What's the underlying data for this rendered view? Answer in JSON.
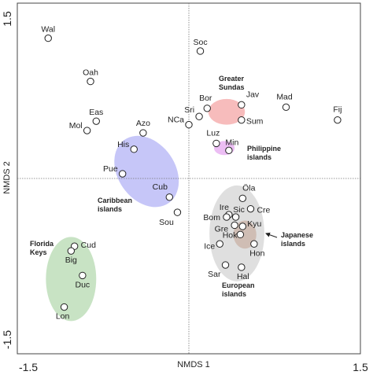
{
  "chart_data": {
    "type": "scatter",
    "xlabel": "NMDS 1",
    "ylabel": "NMDS 2",
    "xlim": [
      -1.5,
      1.5
    ],
    "ylim": [
      -1.5,
      1.5
    ],
    "x_tick_labels": [
      "-1.5",
      "1.5"
    ],
    "y_tick_labels": [
      "-1.5",
      "1.5"
    ],
    "reference_lines": [
      {
        "axis": "x",
        "value": 0
      },
      {
        "axis": "y",
        "value": 0
      }
    ],
    "points": [
      {
        "label": "Wal",
        "x": -1.23,
        "y": 1.2
      },
      {
        "label": "Soc",
        "x": 0.1,
        "y": 1.09
      },
      {
        "label": "Oah",
        "x": -0.86,
        "y": 0.83
      },
      {
        "label": "Jav",
        "x": 0.46,
        "y": 0.63
      },
      {
        "label": "Mad",
        "x": 0.85,
        "y": 0.61
      },
      {
        "label": "Bor",
        "x": 0.16,
        "y": 0.6
      },
      {
        "label": "Sri",
        "x": 0.09,
        "y": 0.53
      },
      {
        "label": "Sum",
        "x": 0.46,
        "y": 0.5
      },
      {
        "label": "Fij",
        "x": 1.3,
        "y": 0.5
      },
      {
        "label": "Eas",
        "x": -0.81,
        "y": 0.49
      },
      {
        "label": "NCa",
        "x": 0.0,
        "y": 0.46
      },
      {
        "label": "Mol",
        "x": -0.89,
        "y": 0.41
      },
      {
        "label": "Azo",
        "x": -0.4,
        "y": 0.39
      },
      {
        "label": "Luz",
        "x": 0.24,
        "y": 0.3
      },
      {
        "label": "Min",
        "x": 0.35,
        "y": 0.24
      },
      {
        "label": "His",
        "x": -0.48,
        "y": 0.25
      },
      {
        "label": "Pue",
        "x": -0.58,
        "y": 0.04
      },
      {
        "label": "Cub",
        "x": -0.17,
        "y": -0.16
      },
      {
        "label": "Sou",
        "x": -0.1,
        "y": -0.29
      },
      {
        "label": "Öla",
        "x": 0.47,
        "y": -0.17
      },
      {
        "label": "Cre",
        "x": 0.54,
        "y": -0.26
      },
      {
        "label": "Ire",
        "x": 0.35,
        "y": -0.31
      },
      {
        "label": "Sic",
        "x": 0.41,
        "y": -0.33
      },
      {
        "label": "Bom",
        "x": 0.33,
        "y": -0.33
      },
      {
        "label": "Gre",
        "x": 0.4,
        "y": -0.4
      },
      {
        "label": "Kyu",
        "x": 0.47,
        "y": -0.41
      },
      {
        "label": "Hok",
        "x": 0.45,
        "y": -0.48
      },
      {
        "label": "Ice",
        "x": 0.27,
        "y": -0.56
      },
      {
        "label": "Hon",
        "x": 0.57,
        "y": -0.56
      },
      {
        "label": "Sar",
        "x": 0.32,
        "y": -0.74
      },
      {
        "label": "Hal",
        "x": 0.46,
        "y": -0.76
      },
      {
        "label": "Cud",
        "x": -1.0,
        "y": -0.58
      },
      {
        "label": "Big",
        "x": -1.03,
        "y": -0.62
      },
      {
        "label": "Duc",
        "x": -0.93,
        "y": -0.83
      },
      {
        "label": "Lon",
        "x": -1.09,
        "y": -1.1
      }
    ],
    "regions": [
      {
        "name": "Greater Sundas",
        "label_lines": [
          "Greater",
          "Sundas"
        ],
        "color": "#f4a6a6",
        "cx": 0.33,
        "cy": 0.57,
        "rx": 0.16,
        "ry": 0.11
      },
      {
        "name": "Philippine islands",
        "label_lines": [
          "Philippine",
          "islands"
        ],
        "color": "#e6a8f0",
        "cx": 0.31,
        "cy": 0.26,
        "rx": 0.09,
        "ry": 0.06
      },
      {
        "name": "Caribbean islands",
        "label_lines": [
          "Caribbean",
          "islands"
        ],
        "color": "#b3b3f5",
        "cx": -0.37,
        "cy": 0.06,
        "rx": 0.25,
        "ry": 0.33
      },
      {
        "name": "European islands",
        "label_lines": [
          "European",
          "islands"
        ],
        "color": "#d4d4d4",
        "cx": 0.42,
        "cy": -0.47,
        "rx": 0.24,
        "ry": 0.41
      },
      {
        "name": "Japanese islands",
        "label_lines": [
          "Japanese",
          "islands"
        ],
        "color": "#c9b1a5",
        "cx": 0.49,
        "cy": -0.48,
        "rx": 0.1,
        "ry": 0.12
      },
      {
        "name": "Florida Keys",
        "label_lines": [
          "Florida",
          "Keys"
        ],
        "color": "#b5d9b0",
        "cx": -1.03,
        "cy": -0.86,
        "rx": 0.22,
        "ry": 0.36
      }
    ]
  }
}
